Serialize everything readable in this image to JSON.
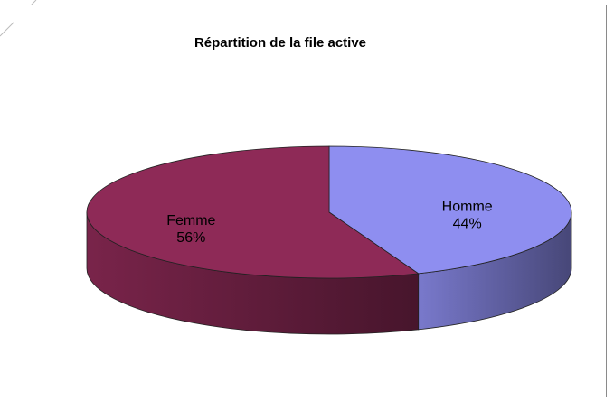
{
  "chart_data": {
    "type": "pie",
    "title": "Répartition de la file active",
    "categories": [
      "Homme",
      "Femme"
    ],
    "values": [
      44,
      56
    ],
    "value_labels": [
      "44%",
      "56%"
    ],
    "colors": [
      "#8e8ef0",
      "#8e2a57"
    ]
  }
}
